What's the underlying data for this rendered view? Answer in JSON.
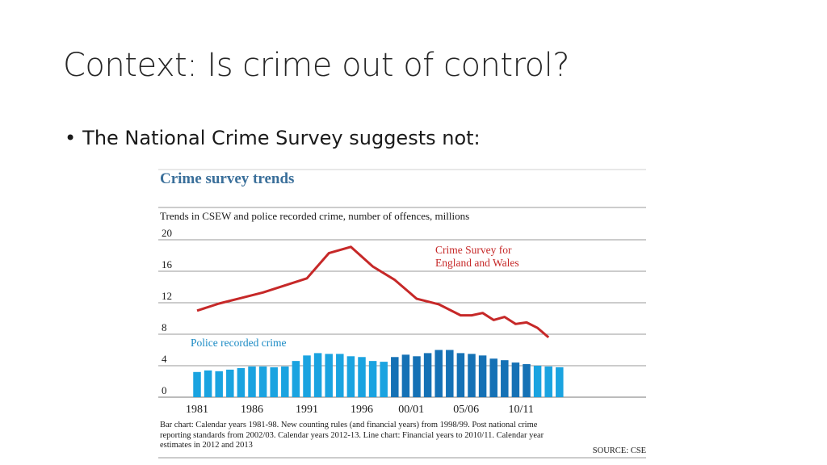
{
  "slide": {
    "title": "Context: Is crime out of control?",
    "bullet": "The National Crime Survey suggests not:"
  },
  "chart_data": {
    "type": "bar",
    "title": "Crime survey trends",
    "subtitle": "Trends in CSEW and police recorded crime, number of offences, millions",
    "ylim": [
      0,
      20
    ],
    "yticks": [
      0,
      4,
      8,
      12,
      16,
      20
    ],
    "grid": true,
    "x_labels": [
      "1981",
      "1986",
      "1991",
      "1996",
      "00/01",
      "05/06",
      "10/11"
    ],
    "x_label_positions": [
      0,
      5,
      10,
      15,
      19.5,
      24.5,
      29.5
    ],
    "bar_colors": {
      "calendar": "#1aa3e0",
      "financial": "#1571b5"
    },
    "line_color": "#c62828",
    "series": [
      {
        "name": "Police recorded crime",
        "kind": "bar",
        "label_color": "#1a8ac4",
        "x": [
          0,
          1,
          2,
          3,
          4,
          5,
          6,
          7,
          8,
          9,
          10,
          11,
          12,
          13,
          14,
          15,
          16,
          17,
          18,
          19,
          20,
          21,
          22,
          23,
          24,
          25,
          26,
          27,
          28,
          29,
          30,
          31
        ],
        "values": [
          3.2,
          3.4,
          3.3,
          3.5,
          3.7,
          3.9,
          3.9,
          3.8,
          3.9,
          4.6,
          5.3,
          5.6,
          5.5,
          5.5,
          5.2,
          5.1,
          4.6,
          4.5,
          5.1,
          5.4,
          5.2,
          5.6,
          6.0,
          6.0,
          5.6,
          5.5,
          5.3,
          4.9,
          4.7,
          4.4,
          4.2,
          4.0
        ],
        "extra_bars": [
          {
            "x": 32,
            "value": 3.9
          },
          {
            "x": 33,
            "value": 3.8
          }
        ],
        "color_groups": [
          "calendar",
          "calendar",
          "calendar",
          "calendar",
          "calendar",
          "calendar",
          "calendar",
          "calendar",
          "calendar",
          "calendar",
          "calendar",
          "calendar",
          "calendar",
          "calendar",
          "calendar",
          "calendar",
          "calendar",
          "calendar",
          "financial",
          "financial",
          "financial",
          "financial",
          "financial",
          "financial",
          "financial",
          "financial",
          "financial",
          "financial",
          "financial",
          "financial",
          "financial",
          "calendar",
          "calendar",
          "calendar"
        ]
      },
      {
        "name": "Crime Survey for England and Wales",
        "name_lines": [
          "Crime Survey for",
          "England and Wales"
        ],
        "kind": "line",
        "label_color": "#c62828",
        "x": [
          0,
          2,
          4,
          6,
          8,
          10,
          12,
          14,
          16,
          18,
          20,
          22,
          24,
          25,
          26,
          27,
          28,
          29,
          30,
          31,
          32
        ],
        "values": [
          11.0,
          11.9,
          12.6,
          13.3,
          14.2,
          15.1,
          18.3,
          19.1,
          16.6,
          14.9,
          12.5,
          11.8,
          10.4,
          10.4,
          10.7,
          9.8,
          10.2,
          9.3,
          9.5,
          8.8,
          7.6
        ]
      }
    ],
    "footnote_lines": [
      "Bar chart:  Calendar years 1981-98. New counting rules (and financial years) from 1998/99. Post national crime",
      "reporting standards from 2002/03. Calendar years 2012-13.   Line chart:  Financial years to 2010/11. Calendar year",
      "estimates in 2012 and 2013"
    ],
    "source": "SOURCE: CSE"
  }
}
